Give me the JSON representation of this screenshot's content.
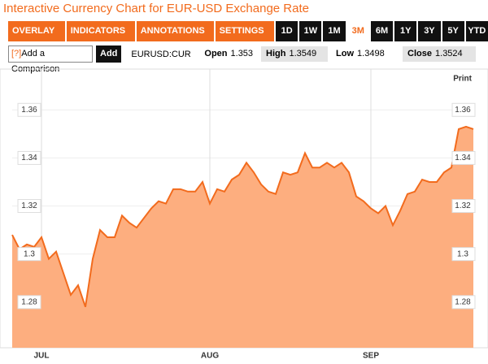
{
  "header": {
    "title": "Interactive Currency Chart for EUR-USD Exchange Rate"
  },
  "toolbar": {
    "menus": [
      "OVERLAY",
      "INDICATORS",
      "ANNOTATIONS",
      "SETTINGS"
    ],
    "ranges": [
      "1D",
      "1W",
      "1M",
      "3M",
      "6M",
      "1Y",
      "3Y",
      "5Y",
      "YTD"
    ]
  },
  "quote_bar": {
    "help": "[?]",
    "comparison": "Add a Comparison",
    "add": "Add",
    "symbol": "EURUSD:CUR",
    "fields": [
      {
        "label": "Open",
        "value": 1.353
      },
      {
        "label": "High",
        "value": 1.3549
      },
      {
        "label": "Low",
        "value": 1.3498
      },
      {
        "label": "Close",
        "value": 1.3524
      }
    ]
  },
  "print": "Print",
  "chart_data": {
    "type": "area",
    "categories": [
      null,
      null,
      null,
      null,
      "JUL",
      null,
      null,
      null,
      null,
      null,
      null,
      null,
      null,
      null,
      null,
      null,
      null,
      null,
      null,
      null,
      null,
      null,
      null,
      null,
      null,
      null,
      null,
      "AUG",
      null,
      null,
      null,
      null,
      null,
      null,
      null,
      null,
      null,
      null,
      null,
      null,
      null,
      null,
      null,
      null,
      null,
      null,
      null,
      null,
      null,
      "SEP",
      null,
      null,
      null,
      null,
      null,
      null,
      null,
      null,
      null,
      null,
      null,
      null,
      null,
      null
    ],
    "values": [
      1.308,
      1.302,
      1.304,
      1.303,
      1.307,
      1.298,
      1.301,
      1.292,
      1.283,
      1.287,
      1.278,
      1.298,
      1.31,
      1.307,
      1.307,
      1.316,
      1.313,
      1.311,
      1.315,
      1.319,
      1.322,
      1.321,
      1.327,
      1.327,
      1.326,
      1.326,
      1.33,
      1.321,
      1.327,
      1.326,
      1.331,
      1.333,
      1.338,
      1.334,
      1.329,
      1.326,
      1.325,
      1.334,
      1.333,
      1.334,
      1.342,
      1.336,
      1.336,
      1.338,
      1.336,
      1.338,
      1.334,
      1.324,
      1.322,
      1.319,
      1.317,
      1.32,
      1.312,
      1.318,
      1.325,
      1.326,
      1.331,
      1.33,
      1.33,
      1.334,
      1.336,
      1.352,
      1.353,
      1.352
    ],
    "color": "#f26b1d",
    "fill": "#fdae7f",
    "ylim": [
      1.261,
      1.377
    ],
    "yticks": [
      1.28,
      1.3,
      1.32,
      1.34,
      1.36
    ],
    "grid": true
  }
}
